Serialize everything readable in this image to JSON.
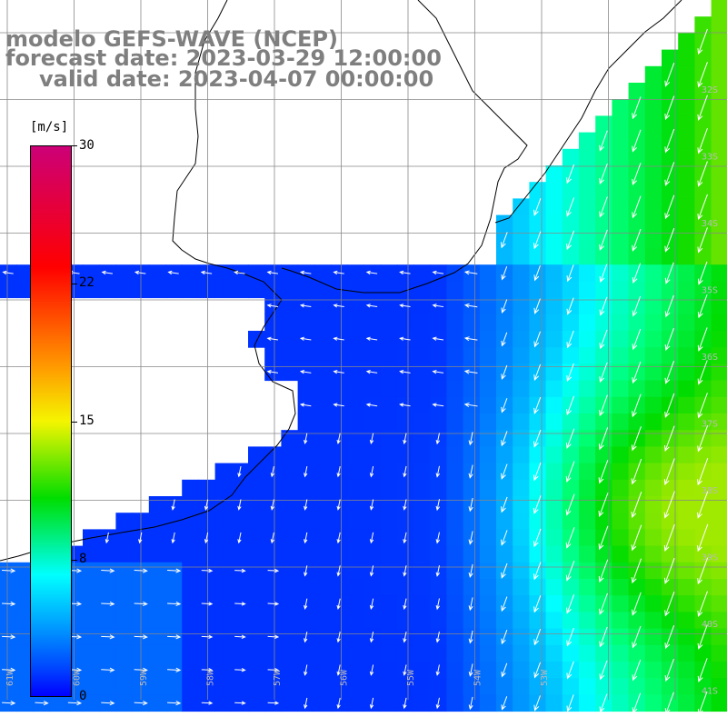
{
  "title": {
    "line1": "modelo GEFS-WAVE (NCEP)",
    "line2": "forecast date: 2023-03-29 12:00:00",
    "line3": "valid date: 2023-04-07 00:00:00"
  },
  "colorbar": {
    "unit": "[m/s]",
    "ticks": [
      "30",
      "22",
      "15",
      "8",
      "0"
    ],
    "tick_values": [
      30,
      22,
      15,
      8,
      0
    ],
    "range": [
      0,
      30
    ],
    "colors": [
      "#0000ff",
      "#0044ff",
      "#00aaff",
      "#00ffff",
      "#00dd00",
      "#f5f500",
      "#ff9900",
      "#ff0000",
      "#cc0077"
    ]
  },
  "map": {
    "lat_labels": [
      "32S",
      "33S",
      "34S",
      "35S",
      "36S",
      "37S",
      "38S",
      "39S",
      "40S",
      "41S"
    ],
    "lon_labels": [
      "61W",
      "60W",
      "59W",
      "58W",
      "57W",
      "56W",
      "55W",
      "54W",
      "53W"
    ],
    "field": "10m wind speed and direction",
    "land_color": "#ffffff",
    "coast_color": "#000000",
    "grid_color": "#888888"
  }
}
